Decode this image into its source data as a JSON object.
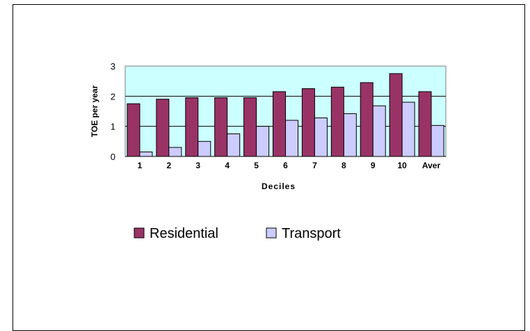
{
  "chart_data": {
    "type": "bar",
    "title": "",
    "xlabel": "Deciles",
    "ylabel": "TOE per year",
    "categories": [
      "1",
      "2",
      "3",
      "4",
      "5",
      "6",
      "7",
      "8",
      "9",
      "10",
      "Aver"
    ],
    "series": [
      {
        "name": "Residential",
        "values": [
          1.75,
          1.9,
          1.95,
          1.95,
          1.95,
          2.15,
          2.25,
          2.3,
          2.45,
          2.75,
          2.15
        ]
      },
      {
        "name": "Transport",
        "values": [
          0.15,
          0.3,
          0.5,
          0.75,
          1.0,
          1.2,
          1.28,
          1.42,
          1.68,
          1.8,
          1.03
        ]
      }
    ],
    "ylim": [
      0,
      3
    ],
    "yticks": [
      "0",
      "1",
      "2",
      "3"
    ],
    "grid": true,
    "legend_position": "bottom",
    "colors": {
      "plot_background": "#ccffff",
      "residential": "#993366",
      "transport": "#ccccff",
      "gridline": "#000000"
    }
  }
}
